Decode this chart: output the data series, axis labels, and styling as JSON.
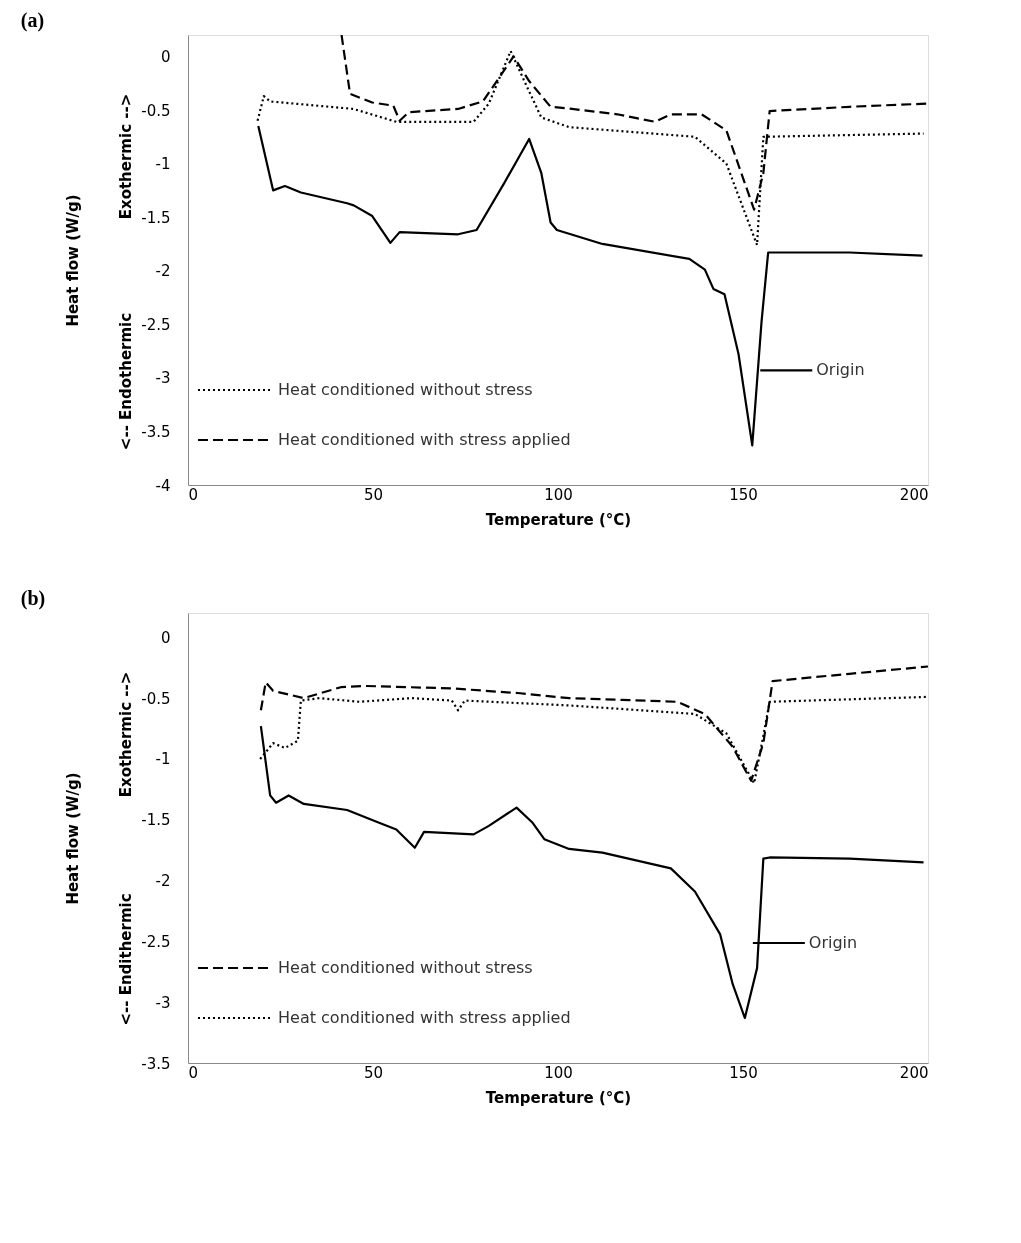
{
  "chart_data": [
    {
      "type": "line",
      "title": "(a)",
      "xlabel": "Temperature (°C)",
      "ylabel": "Heat flow (W/g)",
      "xlim": [
        0,
        200
      ],
      "xticks": [
        0,
        50,
        100,
        150,
        200
      ],
      "ylim": [
        -4,
        0.2
      ],
      "yticks": [
        -4,
        -3.5,
        -3,
        -2.5,
        -2,
        -1.5,
        -1,
        -0.5,
        0
      ],
      "grid": false,
      "legend": "bottom left",
      "annotations": [
        "Exothermic -->",
        "<-- Endothermic"
      ],
      "series": [
        {
          "name": "Origin",
          "color": "#000000",
          "line_style": "solid",
          "x": [
            19,
            23,
            26.2,
            30.5,
            43,
            44.8,
            49.8,
            54.7,
            57.2,
            73,
            78,
            85.5,
            92.2,
            95.5,
            98,
            99.7,
            112,
            135.5,
            139.7,
            142,
            145,
            148.8,
            152.5,
            155,
            156.8,
            178.8,
            198.5
          ],
          "values": [
            -0.65,
            -1.25,
            -1.21,
            -1.27,
            -1.37,
            -1.39,
            -1.49,
            -1.74,
            -1.64,
            -1.66,
            -1.62,
            -1.18,
            -0.77,
            -1.09,
            -1.55,
            -1.62,
            -1.75,
            -1.89,
            -1.99,
            -2.17,
            -2.22,
            -2.78,
            -3.63,
            -2.48,
            -1.83,
            -1.83,
            -1.86
          ]
        },
        {
          "name": "Heat conditioned without stress",
          "color": "#000000",
          "line_style": "dotted",
          "x": [
            18.8,
            20.5,
            22.2,
            44.7,
            56.3,
            77.2,
            81.3,
            87.2,
            91.3,
            95.5,
            103,
            137,
            145.5,
            153.8,
            155.5,
            198.8
          ],
          "values": [
            -0.6,
            -0.37,
            -0.42,
            -0.49,
            -0.61,
            -0.61,
            -0.44,
            0.05,
            -0.26,
            -0.57,
            -0.66,
            -0.75,
            -1.0,
            -1.76,
            -0.75,
            -0.72
          ]
        },
        {
          "name": "Heat conditioned with stress applied",
          "color": "#000000",
          "line_style": "dashed",
          "x": [
            41.5,
            43.8,
            49.8,
            55.5,
            57.2,
            59.7,
            73,
            79.7,
            88,
            92.2,
            98,
            103.8,
            116,
            126.2,
            130.5,
            138.8,
            145.5,
            153,
            155.5,
            157.2,
            178.8,
            199.8
          ],
          "values": [
            0.2,
            -0.35,
            -0.43,
            -0.46,
            -0.6,
            -0.52,
            -0.49,
            -0.42,
            0.0,
            -0.23,
            -0.47,
            -0.49,
            -0.54,
            -0.61,
            -0.54,
            -0.54,
            -0.69,
            -1.43,
            -1.09,
            -0.51,
            -0.47,
            -0.44
          ]
        }
      ]
    },
    {
      "type": "line",
      "title": "(b)",
      "xlabel": "Temperature (°C)",
      "ylabel": "Heat flow (W/g)",
      "xlim": [
        0,
        200
      ],
      "xticks": [
        0,
        50,
        100,
        150,
        200
      ],
      "ylim": [
        -3.5,
        0.2
      ],
      "yticks": [
        -3.5,
        -3,
        -2.5,
        -2,
        -1.5,
        -1,
        -0.5,
        0
      ],
      "grid": false,
      "legend": "bottom left",
      "annotations": [
        "Exothermic -->",
        "<-- Endithermic"
      ],
      "series": [
        {
          "name": "Origin",
          "color": "#000000",
          "line_style": "solid",
          "x": [
            19.7,
            22.2,
            23.8,
            27.2,
            31.3,
            43,
            51.3,
            56.3,
            61.3,
            63.8,
            77.2,
            81.3,
            88.8,
            93,
            96.3,
            103,
            112,
            130.5,
            137,
            143.8,
            147.2,
            150.5,
            153.8,
            155.5,
            157.2,
            178.8,
            198.8
          ],
          "values": [
            -0.73,
            -1.3,
            -1.36,
            -1.3,
            -1.37,
            -1.42,
            -1.52,
            -1.58,
            -1.73,
            -1.6,
            -1.62,
            -1.55,
            -1.4,
            -1.52,
            -1.66,
            -1.74,
            -1.77,
            -1.9,
            -2.09,
            -2.44,
            -2.85,
            -3.13,
            -2.72,
            -1.82,
            -1.81,
            -1.82,
            -1.85
          ]
        },
        {
          "name": "Heat conditioned without stress",
          "color": "#000000",
          "line_style": "dashed",
          "x": [
            19.7,
            21,
            23,
            31.3,
            41.3,
            48,
            71.3,
            89.8,
            103,
            132.2,
            139.7,
            147.2,
            152.2,
            155.5,
            158,
            178.8,
            200
          ],
          "values": [
            -0.6,
            -0.37,
            -0.44,
            -0.5,
            -0.41,
            -0.4,
            -0.42,
            -0.46,
            -0.5,
            -0.53,
            -0.63,
            -0.9,
            -1.18,
            -0.87,
            -0.36,
            -0.3,
            -0.24
          ]
        },
        {
          "name": "Heat conditioned with stress applied",
          "color": "#000000",
          "line_style": "dotted",
          "x": [
            19.5,
            23,
            26.2,
            29.7,
            30.5,
            35.5,
            46.3,
            60.5,
            71.3,
            73,
            74.8,
            103,
            137,
            145.5,
            153,
            155.5,
            157.2,
            199.8
          ],
          "values": [
            -1.0,
            -0.87,
            -0.91,
            -0.85,
            -0.52,
            -0.5,
            -0.53,
            -0.5,
            -0.52,
            -0.6,
            -0.52,
            -0.56,
            -0.63,
            -0.79,
            -1.2,
            -0.81,
            -0.53,
            -0.49
          ]
        }
      ]
    }
  ]
}
